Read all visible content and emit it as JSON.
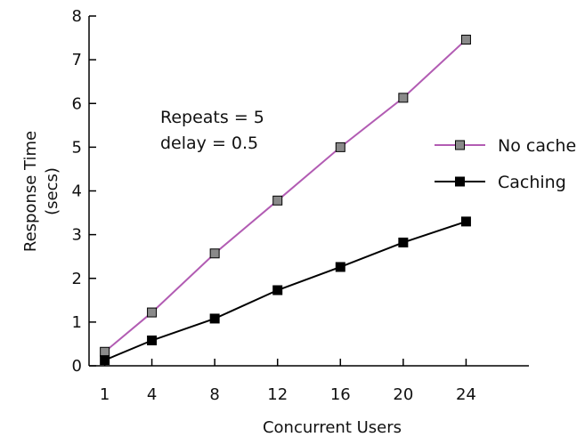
{
  "chart_data": {
    "type": "line",
    "title": "",
    "xlabel": "Concurrent Users",
    "ylabel": [
      "Response Time",
      "(secs)"
    ],
    "x": [
      1,
      4,
      8,
      12,
      16,
      20,
      24
    ],
    "xticks": [
      1,
      4,
      8,
      12,
      16,
      20,
      24
    ],
    "yticks": [
      0,
      1,
      2,
      3,
      4,
      5,
      6,
      7,
      8
    ],
    "xlim": [
      0,
      28
    ],
    "ylim": [
      0,
      8
    ],
    "grid": false,
    "legend_position": "right",
    "annotations": [
      "Repeats = 5",
      "delay = 0.5"
    ],
    "series": [
      {
        "name": "No cache",
        "line_color": "#b25cb3",
        "marker": "square",
        "marker_color": "#8a8a8a",
        "values": [
          0.32,
          1.22,
          2.57,
          3.78,
          5.0,
          6.13,
          7.46
        ]
      },
      {
        "name": "Caching",
        "line_color": "#000000",
        "marker": "square",
        "marker_color": "#000000",
        "values": [
          0.13,
          0.58,
          1.08,
          1.73,
          2.26,
          2.82,
          3.3
        ]
      }
    ]
  }
}
